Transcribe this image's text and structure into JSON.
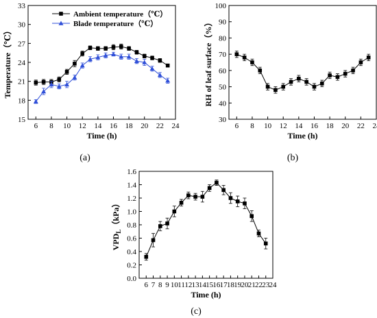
{
  "chart_data": [
    {
      "type": "line",
      "panel_label": "(a)",
      "xlabel": "Time (h)",
      "ylabel": "Temperature（℃）",
      "xlim": [
        5,
        24
      ],
      "ylim": [
        15,
        33
      ],
      "xticks": [
        6,
        8,
        10,
        12,
        14,
        16,
        18,
        20,
        22,
        24
      ],
      "yticks": [
        15,
        18,
        21,
        24,
        27,
        30,
        33
      ],
      "legend_position": "top-left",
      "x": [
        6,
        7,
        8,
        9,
        10,
        11,
        12,
        13,
        14,
        15,
        16,
        17,
        18,
        19,
        20,
        21,
        22,
        23
      ],
      "series": [
        {
          "name": "Ambient temperature（℃）",
          "marker": "square",
          "color": "#000000",
          "values": [
            20.8,
            20.9,
            20.9,
            21.3,
            22.5,
            23.8,
            25.4,
            26.3,
            26.2,
            26.2,
            26.4,
            26.5,
            26.2,
            25.6,
            25.0,
            24.7,
            24.3,
            23.5
          ],
          "errors": [
            0.4,
            0.4,
            0.4,
            0.4,
            0.4,
            0.5,
            0.4,
            0.3,
            0.3,
            0.3,
            0.4,
            0.4,
            0.3,
            0.3,
            0.3,
            0.3,
            0.3,
            0.2
          ]
        },
        {
          "name": "Blade temperature（℃）",
          "marker": "triangle",
          "color": "#2f4fd8",
          "values": [
            17.8,
            19.4,
            20.5,
            20.2,
            20.5,
            21.6,
            23.5,
            24.5,
            24.8,
            25.1,
            25.3,
            24.9,
            24.9,
            24.2,
            24.0,
            23.0,
            22.0,
            21.1
          ],
          "errors": [
            0.3,
            0.5,
            0.5,
            0.4,
            0.5,
            0.4,
            0.4,
            0.4,
            0.4,
            0.4,
            0.3,
            0.4,
            0.4,
            0.4,
            0.5,
            0.4,
            0.4,
            0.4
          ]
        }
      ]
    },
    {
      "type": "line",
      "panel_label": "(b)",
      "xlabel": "Time (h)",
      "ylabel": "RH of leaf surface（%）",
      "xlim": [
        5,
        24
      ],
      "ylim": [
        30,
        100
      ],
      "xticks": [
        6,
        8,
        10,
        12,
        14,
        16,
        18,
        20,
        22,
        24
      ],
      "yticks": [
        30,
        40,
        50,
        60,
        70,
        80,
        90,
        100
      ],
      "x": [
        6,
        7,
        8,
        9,
        10,
        11,
        12,
        13,
        14,
        15,
        16,
        17,
        18,
        19,
        20,
        21,
        22,
        23
      ],
      "series": [
        {
          "marker": "square",
          "color": "#000000",
          "values": [
            70,
            68,
            65,
            60,
            50,
            48,
            50,
            53,
            55,
            53,
            50,
            52,
            57,
            56,
            58,
            60,
            65,
            68
          ],
          "errors": [
            2,
            2,
            2,
            2,
            2,
            2,
            2,
            2,
            2,
            2,
            2,
            2,
            2,
            2,
            2,
            2,
            2,
            2
          ]
        }
      ]
    },
    {
      "type": "line",
      "panel_label": "(c)",
      "xlabel": "Time (h)",
      "ylabel": "VPD",
      "ylabel_sub": "L",
      "ylabel_unit": "（kPa）",
      "xlim": [
        5,
        24
      ],
      "ylim": [
        0,
        1.6
      ],
      "xticks": [
        6,
        7,
        8,
        9,
        10,
        11,
        12,
        13,
        14,
        15,
        16,
        17,
        18,
        19,
        20,
        21,
        22,
        23,
        24
      ],
      "yticks": [
        0.0,
        0.2,
        0.4,
        0.6,
        0.8,
        1.0,
        1.2,
        1.4,
        1.6
      ],
      "x": [
        6,
        7,
        8,
        9,
        10,
        11,
        12,
        13,
        14,
        15,
        16,
        17,
        18,
        19,
        20,
        21,
        22,
        23
      ],
      "series": [
        {
          "marker": "square",
          "color": "#000000",
          "values": [
            0.32,
            0.57,
            0.78,
            0.82,
            1.0,
            1.13,
            1.24,
            1.22,
            1.22,
            1.35,
            1.43,
            1.32,
            1.2,
            1.15,
            1.12,
            0.93,
            0.67,
            0.52
          ],
          "errors": [
            0.05,
            0.1,
            0.07,
            0.08,
            0.08,
            0.05,
            0.05,
            0.05,
            0.08,
            0.05,
            0.04,
            0.07,
            0.08,
            0.08,
            0.08,
            0.08,
            0.05,
            0.08
          ]
        }
      ]
    }
  ]
}
